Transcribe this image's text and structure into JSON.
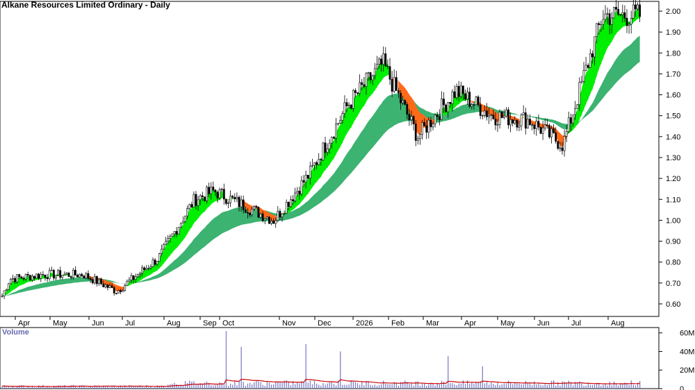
{
  "title": "Alkane Resources Limited Ordinary - Daily",
  "volume_label": "Volume",
  "colors": {
    "long_ribbon": "#3cb371",
    "short_ribbon_up": "#00ee00",
    "short_ribbon_down": "#ff6a1a",
    "short_ribbon_weak": "#f5b5aa",
    "candle": "#000000",
    "volume_bar": "#8080c8",
    "volume_ma": "#cc0000",
    "grid": "#000000"
  },
  "chart_data": {
    "type": "candlestick",
    "title": "Alkane Resources Limited Ordinary - Daily",
    "price_axis": {
      "ticks": [
        "2.00",
        "1.90",
        "1.80",
        "1.70",
        "1.60",
        "1.50",
        "1.40",
        "1.30",
        "1.20",
        "1.10",
        "1.00",
        "0.90",
        "0.80",
        "0.70",
        "0.60"
      ],
      "range": [
        0.54,
        2.04
      ]
    },
    "time_axis": {
      "labels": [
        "Apr",
        "May",
        "Jun",
        "Jul",
        "Aug",
        "Sep",
        "Oct",
        "Nov",
        "Dec",
        "2026",
        "Feb",
        "Mar",
        "Apr",
        "May",
        "Jun",
        "Jul",
        "Aug"
      ]
    },
    "close_series_monthly": [
      {
        "period": "Apr",
        "close": 0.72
      },
      {
        "period": "May",
        "close": 0.74
      },
      {
        "period": "Jun",
        "close": 0.74
      },
      {
        "period": "Jul",
        "close": 0.66
      },
      {
        "period": "Aug",
        "close": 0.82
      },
      {
        "period": "Sep",
        "close": 1.1
      },
      {
        "period": "Oct",
        "close": 1.14
      },
      {
        "period": "Nov",
        "close": 1.0
      },
      {
        "period": "Dec",
        "close": 1.22
      },
      {
        "period": "2026",
        "close": 1.55
      },
      {
        "period": "Feb",
        "close": 1.75
      },
      {
        "period": "Mar",
        "close": 1.4
      },
      {
        "period": "Apr",
        "close": 1.62
      },
      {
        "period": "May",
        "close": 1.5
      },
      {
        "period": "Jun",
        "close": 1.48
      },
      {
        "period": "Jul",
        "close": 1.36
      },
      {
        "period": "Aug",
        "close": 1.98
      }
    ],
    "volume_axis": {
      "ticks": [
        "60M",
        "40M",
        "20M",
        "0"
      ],
      "range": [
        0,
        65
      ]
    },
    "volume_spikes_M": [
      {
        "period": "Sep",
        "value": 62
      },
      {
        "period": "Sep",
        "value": 45
      },
      {
        "period": "Nov",
        "value": 48
      },
      {
        "period": "Dec",
        "value": 40
      },
      {
        "period": "Apr",
        "value": 35
      },
      {
        "period": "May",
        "value": 24
      }
    ]
  }
}
